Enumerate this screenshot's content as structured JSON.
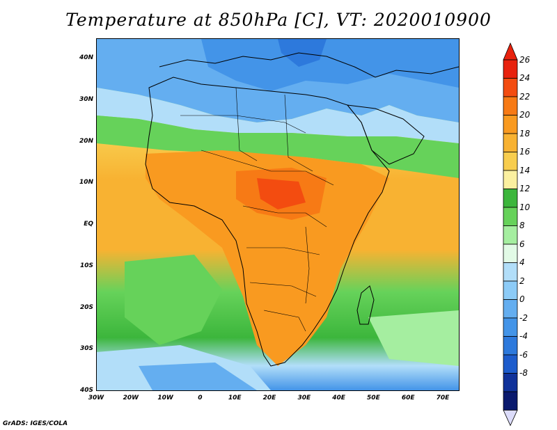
{
  "title": "Temperature at 850hPa [C], VT: 2020010900",
  "footer": "GrADS: IGES/COLA",
  "map": {
    "lat_labels": [
      "40N",
      "30N",
      "20N",
      "10N",
      "EQ",
      "10S",
      "20S",
      "30S",
      "40S"
    ],
    "lon_labels": [
      "30W",
      "20W",
      "10W",
      "0",
      "10E",
      "20E",
      "30E",
      "40E",
      "50E",
      "60E",
      "70E"
    ],
    "lon_range": [
      -30,
      75
    ],
    "lat_range": [
      -40,
      45
    ]
  },
  "colorbar": {
    "labels": [
      "26",
      "24",
      "22",
      "20",
      "18",
      "16",
      "14",
      "12",
      "10",
      "8",
      "6",
      "4",
      "2",
      "0",
      "-2",
      "-4",
      "-6",
      "-8"
    ],
    "colors": [
      "#e8220e",
      "#f34c10",
      "#f77a15",
      "#f99a20",
      "#f8b232",
      "#f8cd4e",
      "#fbf0a0",
      "#3cb63c",
      "#66d25a",
      "#a5eea0",
      "#e2fae6",
      "#b2def9",
      "#8ccbf7",
      "#64aef0",
      "#4394e8",
      "#2d79dc",
      "#1d5ccc",
      "#10329a",
      "#0a1a6e"
    ],
    "over_color": "#e8220e",
    "under_color": "#dcdcfa"
  }
}
